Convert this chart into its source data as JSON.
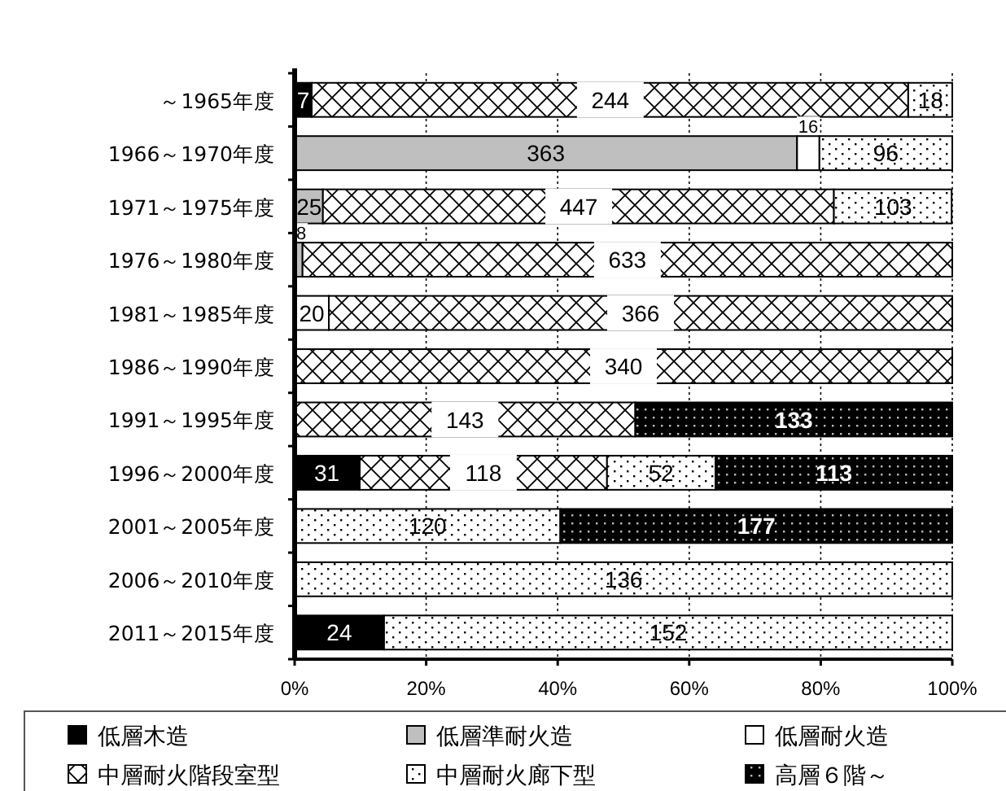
{
  "chart_data": {
    "type": "bar",
    "orientation": "horizontal",
    "stacked": true,
    "categories": [
      "～1965年度",
      "1966～1970年度",
      "1971～1975年度",
      "1976～1980年度",
      "1981～1985年度",
      "1986～1990年度",
      "1991～1995年度",
      "1996～2000年度",
      "2001～2005年度",
      "2006～2010年度",
      "2011～2015年度"
    ],
    "series": [
      {
        "name": "低層木造",
        "color": "#000000",
        "values": [
          2.6,
          0,
          0,
          0,
          0,
          0,
          0,
          9.9,
          0,
          0,
          13.6
        ]
      },
      {
        "name": "低層準耐火造",
        "color": "#bfbfbf",
        "values": [
          0,
          76.4,
          4.3,
          1.2,
          0,
          0,
          0,
          0,
          0,
          0,
          0
        ]
      },
      {
        "name": "低層耐火造",
        "color": "#ffffff",
        "values": [
          0,
          3.4,
          0,
          0,
          5.2,
          0,
          0,
          0,
          0,
          0,
          0
        ]
      },
      {
        "name": "中層耐火階段室型",
        "color": "#000000",
        "values": [
          90.7,
          0,
          77.7,
          98.8,
          94.8,
          100,
          51.8,
          37.6,
          0,
          0,
          0
        ]
      },
      {
        "name": "中層耐火廊下型",
        "color": "#000000",
        "values": [
          6.7,
          20.2,
          17.9,
          0,
          0,
          0,
          0,
          16.5,
          40.4,
          100,
          86.4
        ]
      },
      {
        "name": "高層６階～",
        "color": "#000000",
        "values": [
          0,
          0,
          0,
          0,
          0,
          0,
          48.2,
          36.0,
          59.6,
          0,
          0
        ]
      }
    ],
    "annotations": [
      {
        "text": "7",
        "x": 1.3,
        "y": "～1965年度"
      },
      {
        "text": "244",
        "x": 48.0,
        "y": "～1965年度"
      },
      {
        "text": "18",
        "x": 96.7,
        "y": "～1965年度"
      },
      {
        "text": "363",
        "x": 38.2,
        "y": "1966～1970年度"
      },
      {
        "text": "16",
        "x": 78.1,
        "y": "1966～1970年度"
      },
      {
        "text": "96",
        "x": 89.9,
        "y": "1966～1970年度"
      },
      {
        "text": "25",
        "x": 2.2,
        "y": "1971～1975年度"
      },
      {
        "text": "447",
        "x": 43.2,
        "y": "1971～1975年度"
      },
      {
        "text": "103",
        "x": 91.0,
        "y": "1971～1975年度"
      },
      {
        "text": "8",
        "x": 0.6,
        "y": "1976～1980年度"
      },
      {
        "text": "633",
        "x": 50.6,
        "y": "1976～1980年度"
      },
      {
        "text": "20",
        "x": 2.6,
        "y": "1981～1985年度"
      },
      {
        "text": "366",
        "x": 52.6,
        "y": "1981～1985年度"
      },
      {
        "text": "340",
        "x": 50,
        "y": "1986～1990年度"
      },
      {
        "text": "143",
        "x": 25.9,
        "y": "1991～1995年度"
      },
      {
        "text": "133",
        "x": 75.9,
        "y": "1991～1995年度"
      },
      {
        "text": "31",
        "x": 4.9,
        "y": "1996～2000年度"
      },
      {
        "text": "118",
        "x": 28.7,
        "y": "1996～2000年度"
      },
      {
        "text": "52",
        "x": 55.7,
        "y": "1996～2000年度"
      },
      {
        "text": "113",
        "x": 82.0,
        "y": "1996～2000年度"
      },
      {
        "text": "120",
        "x": 20.2,
        "y": "2001～2005年度"
      },
      {
        "text": "177",
        "x": 70.2,
        "y": "2001～2005年度"
      },
      {
        "text": "136",
        "x": 50,
        "y": "2006～2010年度"
      },
      {
        "text": "24",
        "x": 6.8,
        "y": "2011～2015年度"
      },
      {
        "text": "152",
        "x": 56.8,
        "y": "2011～2015年度"
      }
    ],
    "xlim": [
      0,
      100
    ],
    "xticks": [
      {
        "value": 0,
        "label": "0%"
      },
      {
        "value": 20,
        "label": "20%"
      },
      {
        "value": 40,
        "label": "40%"
      },
      {
        "value": 60,
        "label": "60%"
      },
      {
        "value": 80,
        "label": "80%"
      },
      {
        "value": 100,
        "label": "100%"
      }
    ],
    "grid": "x",
    "legend": "bottom"
  }
}
